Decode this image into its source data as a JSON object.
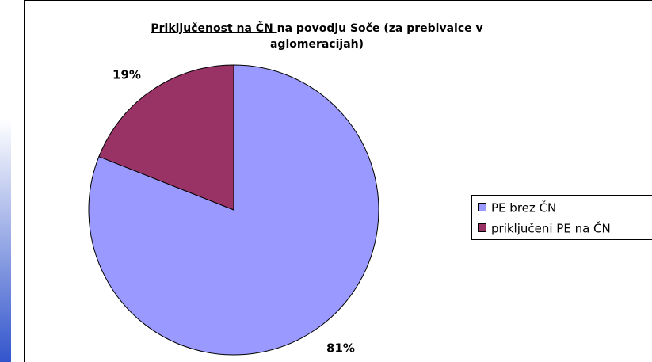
{
  "chart_data": {
    "type": "pie",
    "title_underlined": "Priključenost na ČN ",
    "title_rest": "na povodju Soče (za prebivalce v aglomeracijah)",
    "categories": [
      "PE brez ČN",
      "priključeni PE na ČN"
    ],
    "values": [
      81,
      19
    ],
    "value_labels": [
      "81%",
      "19%"
    ],
    "colors": [
      "#9999ff",
      "#993366"
    ],
    "legend": "right"
  }
}
